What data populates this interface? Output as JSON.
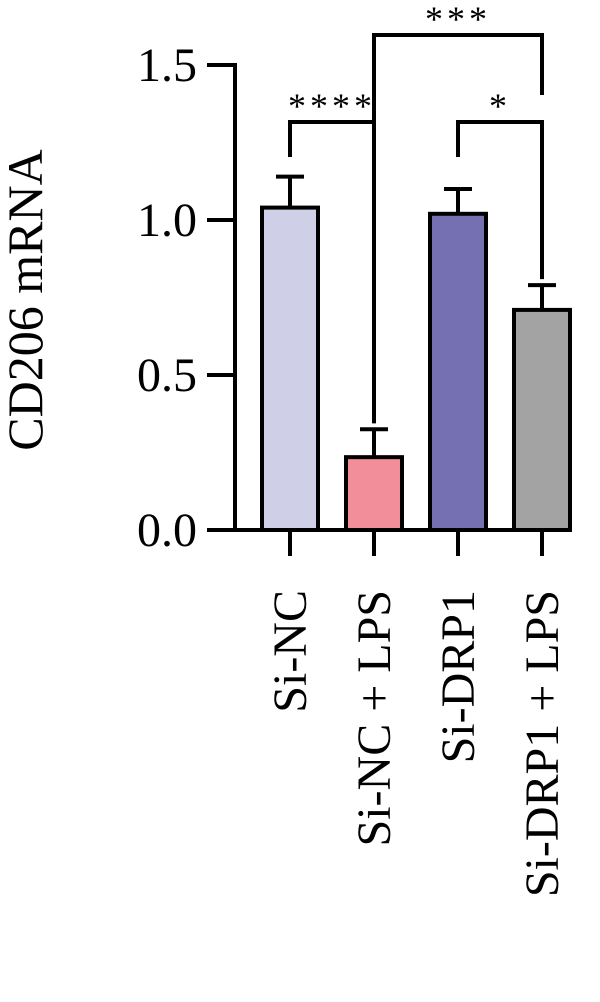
{
  "chart_data": {
    "type": "bar",
    "y_label": "CD206 mRNA",
    "categories": [
      "Si-NC",
      "Si-NC + LPS",
      "Si-DRP1",
      "Si-DRP1 + LPS"
    ],
    "values": [
      1.04,
      0.235,
      1.02,
      0.71
    ],
    "errors": [
      0.1,
      0.09,
      0.08,
      0.08
    ],
    "colors": [
      "#cfcfe8",
      "#f28e99",
      "#7470b2",
      "#a3a3a3"
    ],
    "ylim": [
      0,
      1.5
    ],
    "yticks": [
      {
        "value": 0,
        "label": "0.0"
      },
      {
        "value": 0.5,
        "label": "0.5"
      },
      {
        "value": 1,
        "label": "1.0"
      },
      {
        "value": 1.5,
        "label": "1.5"
      }
    ],
    "annotations": [
      {
        "label": "****",
        "from": 0,
        "to": 1
      },
      {
        "label": "*",
        "from": 2,
        "to": 3
      },
      {
        "label": "***",
        "from": 1,
        "to": 3
      }
    ]
  }
}
